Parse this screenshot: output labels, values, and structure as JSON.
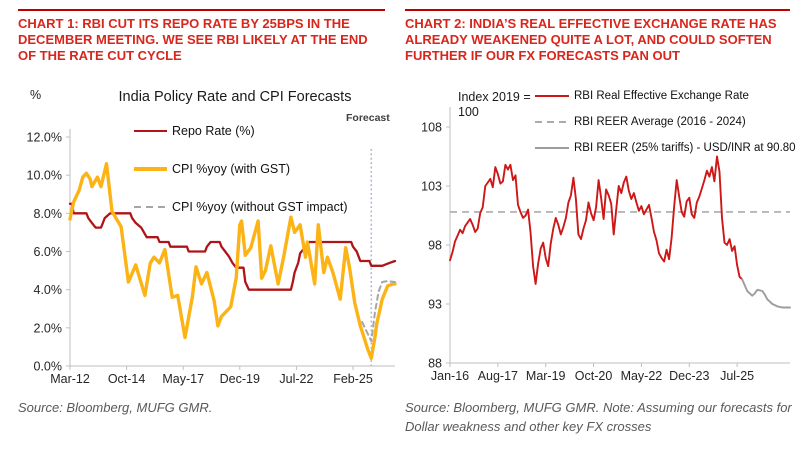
{
  "chart1": {
    "heading": "CHART 1: RBI CUT ITS REPO RATE BY 25BPS IN THE DECEMBER MEETING. WE SEE RBI LIKELY AT THE END OF THE RATE CUT CYCLE",
    "forecast_label": "Forecast",
    "source": "Source: Bloomberg, MUFG GMR."
  },
  "chart2": {
    "heading": "CHART 2: INDIA’S REAL EFFECTIVE EXCHANGE RATE HAS ALREADY WEAKENED QUITE A LOT, AND COULD SOFTEN FURTHER IF OUR FX FORECASTS PAN OUT",
    "index_label_1": "Index 2019 =",
    "index_label_2": "100",
    "source": "Source: Bloomberg, MUFG GMR.  Note: Assuming our forecasts for Dollar weakness and other key FX crosses"
  },
  "colors": {
    "heading_red": "#D9261C",
    "rule_red": "#C00000",
    "repo_red": "#B01418",
    "cpi_yellow": "#FCB316",
    "cpi_nogst_gray": "#A6A6A6",
    "reer_red": "#CE1717",
    "reer_avg_gray": "#ABABAB",
    "reer_tariff_gray": "#9D9D9D",
    "forecast_vline": "#A9B8CE",
    "axis_gray": "#BFBFBF"
  },
  "chart_data": [
    {
      "type": "line",
      "title": "India Policy Rate and CPI Forecasts",
      "ylabel": "%",
      "xlabel": "",
      "x_unit": "months since Mar-2012",
      "xlim": [
        0,
        178
      ],
      "ylim": [
        0,
        12
      ],
      "grid": false,
      "legend_position": "top-left inside plot",
      "yticks": [
        {
          "value": 0,
          "label": "0.0%"
        },
        {
          "value": 2,
          "label": "2.0%"
        },
        {
          "value": 4,
          "label": "4.0%"
        },
        {
          "value": 6,
          "label": "6.0%"
        },
        {
          "value": 8,
          "label": "8.0%"
        },
        {
          "value": 10,
          "label": "10.0%"
        },
        {
          "value": 12,
          "label": "12.0%"
        }
      ],
      "xticks": [
        {
          "pos": 0,
          "label": "Mar-12"
        },
        {
          "pos": 31,
          "label": "Oct-14"
        },
        {
          "pos": 62,
          "label": "May-17"
        },
        {
          "pos": 93,
          "label": "Dec-19"
        },
        {
          "pos": 124,
          "label": "Jul-22"
        },
        {
          "pos": 155,
          "label": "Feb-25"
        }
      ],
      "forecast_vline_pos": 165,
      "series": [
        {
          "name": "Repo Rate (%)",
          "color": "#B01418",
          "width": 2.3,
          "dash": null,
          "points": [
            [
              0,
              8.5
            ],
            [
              1,
              8.5
            ],
            [
              2,
              8.0
            ],
            [
              9,
              8.0
            ],
            [
              10,
              7.75
            ],
            [
              12,
              7.5
            ],
            [
              14,
              7.25
            ],
            [
              17,
              7.25
            ],
            [
              18,
              7.5
            ],
            [
              19,
              7.75
            ],
            [
              22,
              8.0
            ],
            [
              33,
              8.0
            ],
            [
              34,
              7.75
            ],
            [
              36,
              7.5
            ],
            [
              39,
              7.25
            ],
            [
              42,
              6.75
            ],
            [
              48,
              6.75
            ],
            [
              49,
              6.5
            ],
            [
              54,
              6.5
            ],
            [
              55,
              6.25
            ],
            [
              64,
              6.25
            ],
            [
              65,
              6.0
            ],
            [
              74,
              6.0
            ],
            [
              75,
              6.25
            ],
            [
              77,
              6.5
            ],
            [
              82,
              6.5
            ],
            [
              83,
              6.25
            ],
            [
              85,
              6.0
            ],
            [
              87,
              5.75
            ],
            [
              89,
              5.4
            ],
            [
              91,
              5.15
            ],
            [
              95,
              5.15
            ],
            [
              96,
              4.4
            ],
            [
              98,
              4.0
            ],
            [
              121,
              4.0
            ],
            [
              122,
              4.4
            ],
            [
              123,
              4.9
            ],
            [
              125,
              5.4
            ],
            [
              126,
              5.9
            ],
            [
              129,
              6.25
            ],
            [
              131,
              6.5
            ],
            [
              154,
              6.5
            ],
            [
              155,
              6.25
            ],
            [
              157,
              6.0
            ],
            [
              159,
              5.5
            ],
            [
              164,
              5.5
            ],
            [
              165,
              5.25
            ],
            [
              171,
              5.25
            ],
            [
              175,
              5.4
            ],
            [
              178,
              5.5
            ]
          ]
        },
        {
          "name": "CPI %yoy (with GST)",
          "color": "#FCB316",
          "width": 3.4,
          "dash": null,
          "points": [
            [
              0,
              7.7
            ],
            [
              2,
              8.6
            ],
            [
              5,
              9.2
            ],
            [
              7,
              9.9
            ],
            [
              9,
              10.1
            ],
            [
              11,
              9.8
            ],
            [
              12,
              9.4
            ],
            [
              15,
              9.9
            ],
            [
              17,
              9.4
            ],
            [
              20,
              10.6
            ],
            [
              23,
              8.1
            ],
            [
              28,
              7.3
            ],
            [
              32,
              4.4
            ],
            [
              36,
              5.3
            ],
            [
              41,
              3.7
            ],
            [
              44,
              5.4
            ],
            [
              46,
              5.7
            ],
            [
              49,
              5.4
            ],
            [
              52,
              6.1
            ],
            [
              56,
              3.6
            ],
            [
              59,
              3.7
            ],
            [
              63,
              1.5
            ],
            [
              67,
              3.6
            ],
            [
              69,
              5.2
            ],
            [
              72,
              4.3
            ],
            [
              75,
              4.9
            ],
            [
              79,
              3.4
            ],
            [
              81,
              2.1
            ],
            [
              83,
              2.6
            ],
            [
              88,
              3.1
            ],
            [
              91,
              4.6
            ],
            [
              93,
              7.4
            ],
            [
              94,
              7.6
            ],
            [
              96,
              5.8
            ],
            [
              99,
              6.2
            ],
            [
              103,
              7.6
            ],
            [
              105,
              4.6
            ],
            [
              107,
              5.0
            ],
            [
              110,
              6.3
            ],
            [
              114,
              4.3
            ],
            [
              117,
              5.7
            ],
            [
              121,
              7.8
            ],
            [
              123,
              7.0
            ],
            [
              126,
              7.4
            ],
            [
              129,
              5.7
            ],
            [
              130,
              6.5
            ],
            [
              134,
              4.3
            ],
            [
              136,
              7.4
            ],
            [
              139,
              4.9
            ],
            [
              141,
              5.7
            ],
            [
              144,
              4.9
            ],
            [
              148,
              3.5
            ],
            [
              151,
              6.2
            ],
            [
              153,
              5.2
            ],
            [
              156,
              3.3
            ],
            [
              159,
              2.1
            ],
            [
              161,
              1.5
            ],
            [
              163,
              0.9
            ],
            [
              165,
              0.4
            ],
            [
              167,
              1.5
            ],
            [
              168,
              2.2
            ],
            [
              171,
              3.5
            ],
            [
              174,
              4.2
            ],
            [
              177,
              4.3
            ],
            [
              178,
              4.3
            ]
          ]
        },
        {
          "name": "CPI %yoy (without GST impact)",
          "color": "#A6A6A6",
          "width": 2,
          "dash": "5 4",
          "points": [
            [
              160,
              2.3
            ],
            [
              162,
              1.9
            ],
            [
              165,
              1.3
            ],
            [
              167,
              2.8
            ],
            [
              169,
              3.9
            ],
            [
              171,
              4.4
            ],
            [
              174,
              4.45
            ],
            [
              178,
              4.4
            ]
          ]
        }
      ]
    },
    {
      "type": "line",
      "title": "",
      "ylabel": "Index 2019 = 100",
      "xlabel": "",
      "x_unit": "months since Jan-2016",
      "xlim": [
        0,
        135
      ],
      "ylim": [
        88,
        108
      ],
      "grid": false,
      "legend_position": "top-right above plot",
      "yticks": [
        {
          "value": 88,
          "label": "88"
        },
        {
          "value": 93,
          "label": "93"
        },
        {
          "value": 98,
          "label": "98"
        },
        {
          "value": 103,
          "label": "103"
        },
        {
          "value": 108,
          "label": "108"
        }
      ],
      "xticks": [
        {
          "pos": 0,
          "label": "Jan-16"
        },
        {
          "pos": 19,
          "label": "Aug-17"
        },
        {
          "pos": 38,
          "label": "Mar-19"
        },
        {
          "pos": 57,
          "label": "Oct-20"
        },
        {
          "pos": 76,
          "label": "May-22"
        },
        {
          "pos": 95,
          "label": "Dec-23"
        },
        {
          "pos": 114,
          "label": "Jul-25"
        }
      ],
      "avg_line": {
        "label": "RBI REER Average (2016 - 2024)",
        "value": 100.8,
        "color": "#ABABAB",
        "dash": "7 5"
      },
      "series": [
        {
          "name": "RBI Real Effective Exchange Rate",
          "color": "#CE1717",
          "width": 1.9,
          "dash": null,
          "x0": 0,
          "values": [
            96.7,
            97.4,
            98.3,
            98.8,
            99.3,
            99.0,
            99.6,
            99.9,
            100.2,
            99.7,
            99.1,
            99.4,
            100.7,
            101.2,
            103.0,
            103.3,
            103.6,
            102.9,
            104.6,
            104.0,
            103.2,
            103.4,
            104.8,
            104.4,
            104.8,
            103.5,
            103.9,
            101.4,
            100.8,
            100.3,
            100.5,
            101.0,
            99.0,
            96.2,
            94.7,
            96.4,
            97.7,
            98.2,
            96.9,
            96.2,
            98.1,
            99.4,
            100.3,
            99.7,
            98.9,
            99.5,
            100.3,
            101.6,
            102.2,
            103.7,
            101.9,
            98.9,
            98.5,
            99.4,
            100.1,
            101.6,
            100.7,
            100.1,
            101.2,
            103.5,
            102.0,
            100.2,
            102.7,
            102.2,
            101.5,
            98.9,
            101.0,
            103.0,
            102.4,
            103.3,
            103.8,
            102.6,
            101.9,
            102.4,
            101.6,
            100.9,
            101.3,
            100.6,
            101.0,
            101.4,
            100.3,
            99.1,
            98.4,
            97.3,
            96.9,
            96.6,
            97.6,
            96.8,
            98.6,
            101.2,
            103.5,
            102.1,
            100.8,
            100.4,
            101.7,
            102.0,
            100.6,
            100.3,
            101.6,
            102.1,
            102.8,
            103.5,
            104.3,
            103.8,
            104.6,
            103.4,
            105.5,
            104.2,
            100.3,
            98.2,
            98.0,
            98.5,
            97.5,
            97.9,
            96.3,
            95.3,
            95.1
          ]
        },
        {
          "name": "RBI REER (25% tariffs) - USD/INR at 90.80",
          "color": "#9D9D9D",
          "width": 1.9,
          "dash": null,
          "points": [
            [
              116,
              95.1
            ],
            [
              118,
              94.1
            ],
            [
              120,
              93.7
            ],
            [
              121,
              93.9
            ],
            [
              122,
              94.2
            ],
            [
              124,
              94.1
            ],
            [
              125,
              93.8
            ],
            [
              126,
              93.4
            ],
            [
              128,
              93.0
            ],
            [
              130,
              92.8
            ],
            [
              132,
              92.7
            ],
            [
              135,
              92.7
            ]
          ]
        }
      ]
    }
  ]
}
